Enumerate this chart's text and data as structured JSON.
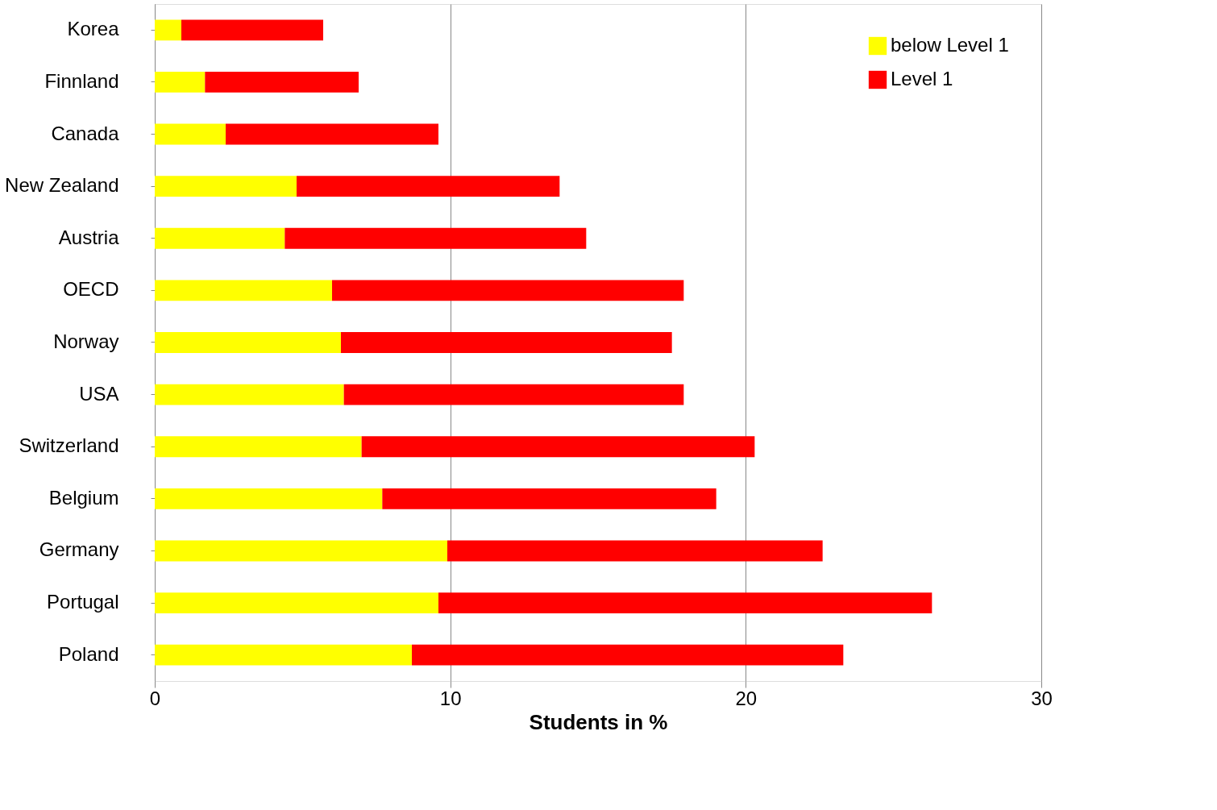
{
  "chart_data": {
    "type": "bar",
    "orientation": "horizontal",
    "stacked": true,
    "xlabel": "Students in %",
    "categories": [
      "Korea",
      "Finnland",
      "Canada",
      "New Zealand",
      "Austria",
      "OECD",
      "Norway",
      "USA",
      "Switzerland",
      "Belgium",
      "Germany",
      "Portugal",
      "Poland"
    ],
    "series": [
      {
        "name": "below Level 1",
        "color": "#ffff00",
        "values": [
          0.9,
          1.7,
          2.4,
          4.8,
          4.4,
          6.0,
          6.3,
          6.4,
          7.0,
          7.7,
          9.9,
          9.6,
          8.7
        ]
      },
      {
        "name": "Level 1",
        "color": "#ff0000",
        "values": [
          4.8,
          5.2,
          7.2,
          8.9,
          10.2,
          11.9,
          11.2,
          11.5,
          13.3,
          11.3,
          12.7,
          16.7,
          14.6
        ]
      }
    ],
    "xlim": [
      0,
      30
    ],
    "xticks": [
      0,
      10,
      20,
      30
    ],
    "grid": "x",
    "legend": "top right"
  }
}
